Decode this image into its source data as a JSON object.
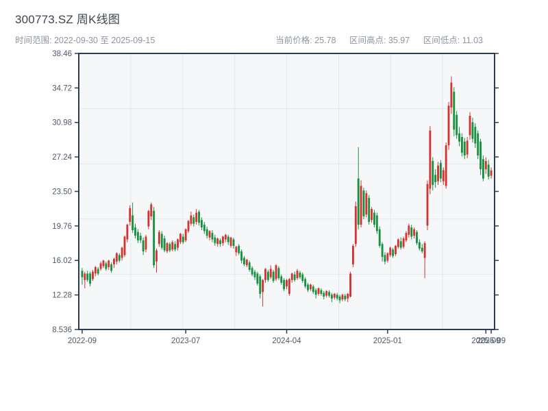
{
  "header": {
    "title": "300773.SZ 周K线图",
    "subtitle": "时间范围: 2022-09-30 至 2025-09-15",
    "stats": [
      {
        "label": "当前价格: ",
        "value": "25.78"
      },
      {
        "label": "区间高点: ",
        "value": "35.97"
      },
      {
        "label": "区间低点: ",
        "value": "11.03"
      }
    ]
  },
  "chart_data": {
    "type": "candlestick",
    "title": "300773.SZ 周K线图",
    "frequency": "weekly",
    "date_range": [
      "2022-09-30",
      "2025-09-15"
    ],
    "current_price": 25.78,
    "period_high": 35.97,
    "period_low": 11.03,
    "ylim": [
      8.536,
      38.46
    ],
    "y_ticks": [
      {
        "v": 38.46,
        "label": "38.46"
      },
      {
        "v": 34.72,
        "label": "34.72"
      },
      {
        "v": 30.98,
        "label": "30.98"
      },
      {
        "v": 27.24,
        "label": "27.24"
      },
      {
        "v": 23.5,
        "label": "23.50"
      },
      {
        "v": 19.76,
        "label": "19.76"
      },
      {
        "v": 16.02,
        "label": "16.02"
      },
      {
        "v": 12.28,
        "label": "12.28"
      },
      {
        "v": 8.536,
        "label": "8.536"
      }
    ],
    "x_ticks": [
      {
        "i": 0,
        "label": "2022-09"
      },
      {
        "i": 39,
        "label": "2023-07"
      },
      {
        "i": 77,
        "label": "2024-04"
      },
      {
        "i": 115,
        "label": "2025-01"
      },
      {
        "i": 152,
        "label": "2025-09"
      },
      {
        "i": 154,
        "label": "2025-09"
      }
    ],
    "grid": {
      "v_divisions": 8,
      "h_divisions": 5
    },
    "colors": {
      "up": "#d13431",
      "down": "#17913f",
      "axis": "#2c3a50",
      "grid": "#e4e7eb",
      "plot_bg": "#f6f7f9",
      "tick_text": "#4e5a67",
      "title_text": "#3c4350",
      "muted_text": "#8d959f"
    },
    "ohlc_format": [
      "open",
      "high",
      "low",
      "close"
    ],
    "candles": [
      [
        14.9,
        15.2,
        13.4,
        14.2
      ],
      [
        13.9,
        14.8,
        13.0,
        14.6
      ],
      [
        14.6,
        14.9,
        13.7,
        13.9
      ],
      [
        14.6,
        14.8,
        13.2,
        13.5
      ],
      [
        14.0,
        15.0,
        13.8,
        14.8
      ],
      [
        14.6,
        15.4,
        14.3,
        15.3
      ],
      [
        15.1,
        15.3,
        14.4,
        14.6
      ],
      [
        15.1,
        15.9,
        14.9,
        15.7
      ],
      [
        15.4,
        16.1,
        15.2,
        16.0
      ],
      [
        15.7,
        15.9,
        14.9,
        15.1
      ],
      [
        15.3,
        16.1,
        15.0,
        16.0
      ],
      [
        15.6,
        15.8,
        14.7,
        14.9
      ],
      [
        15.6,
        16.3,
        15.2,
        16.2
      ],
      [
        15.9,
        16.9,
        15.6,
        16.8
      ],
      [
        16.6,
        16.8,
        15.8,
        16.0
      ],
      [
        16.3,
        17.5,
        16.0,
        17.4
      ],
      [
        16.6,
        18.7,
        16.4,
        18.6
      ],
      [
        18.3,
        20.0,
        18.0,
        19.9
      ],
      [
        20.2,
        22.0,
        19.8,
        21.7
      ],
      [
        20.9,
        22.3,
        19.0,
        19.3
      ],
      [
        19.6,
        20.0,
        18.4,
        18.7
      ],
      [
        19.1,
        19.4,
        17.9,
        18.2
      ],
      [
        18.7,
        19.0,
        17.9,
        18.2
      ],
      [
        18.2,
        18.5,
        16.6,
        17.0
      ],
      [
        17.2,
        18.8,
        16.9,
        18.6
      ],
      [
        19.7,
        21.5,
        19.4,
        21.4
      ],
      [
        20.8,
        22.3,
        20.4,
        22.1
      ],
      [
        21.4,
        21.8,
        15.2,
        15.5
      ],
      [
        15.9,
        17.3,
        14.7,
        17.1
      ],
      [
        17.8,
        19.3,
        17.5,
        19.1
      ],
      [
        18.9,
        19.2,
        17.2,
        17.4
      ],
      [
        18.4,
        18.7,
        16.9,
        17.1
      ],
      [
        17.0,
        18.0,
        16.8,
        17.9
      ],
      [
        17.8,
        18.0,
        16.9,
        17.1
      ],
      [
        17.2,
        18.2,
        17.0,
        18.0
      ],
      [
        17.8,
        18.1,
        17.0,
        17.2
      ],
      [
        17.4,
        18.4,
        17.1,
        18.3
      ],
      [
        18.0,
        19.0,
        17.8,
        18.9
      ],
      [
        18.6,
        18.9,
        17.8,
        18.0
      ],
      [
        18.2,
        19.5,
        18.0,
        19.4
      ],
      [
        19.2,
        20.4,
        19.0,
        20.3
      ],
      [
        20.0,
        21.3,
        19.8,
        20.9
      ],
      [
        20.7,
        21.0,
        19.7,
        20.0
      ],
      [
        20.2,
        21.6,
        19.9,
        21.2
      ],
      [
        21.3,
        21.5,
        19.8,
        20.1
      ],
      [
        20.4,
        20.7,
        19.3,
        19.6
      ],
      [
        19.9,
        20.2,
        18.9,
        19.2
      ],
      [
        19.4,
        19.7,
        18.4,
        18.7
      ],
      [
        18.5,
        19.3,
        18.2,
        19.2
      ],
      [
        19.0,
        19.3,
        18.0,
        18.3
      ],
      [
        18.5,
        18.8,
        17.6,
        17.9
      ],
      [
        17.8,
        18.5,
        17.5,
        18.4
      ],
      [
        18.2,
        18.4,
        17.5,
        17.8
      ],
      [
        17.9,
        18.7,
        17.6,
        18.6
      ],
      [
        18.3,
        18.9,
        18.0,
        18.8
      ],
      [
        18.6,
        18.8,
        17.7,
        18.0
      ],
      [
        17.6,
        18.6,
        17.4,
        18.5
      ],
      [
        18.3,
        18.5,
        17.3,
        17.6
      ],
      [
        16.9,
        17.6,
        16.5,
        17.5
      ],
      [
        17.6,
        17.8,
        16.6,
        16.8
      ],
      [
        17.0,
        17.2,
        15.7,
        16.0
      ],
      [
        16.3,
        16.5,
        15.4,
        15.6
      ],
      [
        15.5,
        16.2,
        15.3,
        16.1
      ],
      [
        15.8,
        16.0,
        14.8,
        15.0
      ],
      [
        15.2,
        15.4,
        14.3,
        14.5
      ],
      [
        14.8,
        15.0,
        13.9,
        14.2
      ],
      [
        14.6,
        14.8,
        13.3,
        13.5
      ],
      [
        14.3,
        14.5,
        11.9,
        12.4
      ],
      [
        12.6,
        14.0,
        11.03,
        13.9
      ],
      [
        13.9,
        15.2,
        13.6,
        15.1
      ],
      [
        14.8,
        15.0,
        13.7,
        13.9
      ],
      [
        14.2,
        15.5,
        14.0,
        15.1
      ],
      [
        14.8,
        15.0,
        13.6,
        13.8
      ],
      [
        14.0,
        15.6,
        13.8,
        15.5
      ],
      [
        15.2,
        15.4,
        13.9,
        14.1
      ],
      [
        14.3,
        14.5,
        13.4,
        13.6
      ],
      [
        13.9,
        14.1,
        12.7,
        12.9
      ],
      [
        13.2,
        14.0,
        12.9,
        13.9
      ],
      [
        12.4,
        14.1,
        12.2,
        14.0
      ],
      [
        13.9,
        14.7,
        13.6,
        14.6
      ],
      [
        14.5,
        14.8,
        13.7,
        13.9
      ],
      [
        14.1,
        15.1,
        13.9,
        14.9
      ],
      [
        14.7,
        14.9,
        14.0,
        14.2
      ],
      [
        14.5,
        14.7,
        13.6,
        13.8
      ],
      [
        14.0,
        14.2,
        13.0,
        13.2
      ],
      [
        13.4,
        13.6,
        12.6,
        12.8
      ],
      [
        12.9,
        13.5,
        12.7,
        13.4
      ],
      [
        13.2,
        13.4,
        12.4,
        12.6
      ],
      [
        12.8,
        13.0,
        11.9,
        12.3
      ],
      [
        12.4,
        13.1,
        12.2,
        13.0
      ],
      [
        12.8,
        13.0,
        12.2,
        12.4
      ],
      [
        12.5,
        12.7,
        11.8,
        12.1
      ],
      [
        12.2,
        12.8,
        12.0,
        12.7
      ],
      [
        12.6,
        12.8,
        12.0,
        12.2
      ],
      [
        12.3,
        12.5,
        11.5,
        11.9
      ],
      [
        12.0,
        12.5,
        11.8,
        12.4
      ],
      [
        12.3,
        12.5,
        11.7,
        11.9
      ],
      [
        12.1,
        12.3,
        11.4,
        11.7
      ],
      [
        11.8,
        12.4,
        11.6,
        12.3
      ],
      [
        12.2,
        12.4,
        11.6,
        11.8
      ],
      [
        11.9,
        12.5,
        11.5,
        12.4
      ],
      [
        12.1,
        14.8,
        12.0,
        14.6
      ],
      [
        15.6,
        17.8,
        15.3,
        17.6
      ],
      [
        17.8,
        22.4,
        17.5,
        21.9
      ],
      [
        24.9,
        28.3,
        19.4,
        19.9
      ],
      [
        19.9,
        24.7,
        19.6,
        24.1
      ],
      [
        23.6,
        23.9,
        20.5,
        20.8
      ],
      [
        21.0,
        23.6,
        20.7,
        23.3
      ],
      [
        22.8,
        23.1,
        19.9,
        20.2
      ],
      [
        20.4,
        21.8,
        20.1,
        21.6
      ],
      [
        21.2,
        21.5,
        19.6,
        19.9
      ],
      [
        20.9,
        21.2,
        18.9,
        19.2
      ],
      [
        19.4,
        19.7,
        17.4,
        17.6
      ],
      [
        17.8,
        18.0,
        15.9,
        16.4
      ],
      [
        16.6,
        16.9,
        15.6,
        15.9
      ],
      [
        16.0,
        16.9,
        15.8,
        16.8
      ],
      [
        16.6,
        17.5,
        16.4,
        17.4
      ],
      [
        17.2,
        17.4,
        16.3,
        16.5
      ],
      [
        16.7,
        17.7,
        16.5,
        17.6
      ],
      [
        17.5,
        18.4,
        17.3,
        18.3
      ],
      [
        18.1,
        18.5,
        17.2,
        17.4
      ],
      [
        17.5,
        18.6,
        17.3,
        18.4
      ],
      [
        18.2,
        19.2,
        18.0,
        19.0
      ],
      [
        18.8,
        20.0,
        18.5,
        19.8
      ],
      [
        19.6,
        19.9,
        18.3,
        18.6
      ],
      [
        18.7,
        19.6,
        18.4,
        19.4
      ],
      [
        19.1,
        19.3,
        17.7,
        17.9
      ],
      [
        18.0,
        18.3,
        17.1,
        17.3
      ],
      [
        17.4,
        17.8,
        16.8,
        17.0
      ],
      [
        16.3,
        18.1,
        14.1,
        17.9
      ],
      [
        19.8,
        24.7,
        19.3,
        24.3
      ],
      [
        23.8,
        30.6,
        23.2,
        30.1
      ],
      [
        26.8,
        27.2,
        23.6,
        24.2
      ],
      [
        25.3,
        25.9,
        23.9,
        24.5
      ],
      [
        24.6,
        26.7,
        24.2,
        26.3
      ],
      [
        26.6,
        26.9,
        24.5,
        24.9
      ],
      [
        24.6,
        26.1,
        24.2,
        25.8
      ],
      [
        24.1,
        28.8,
        23.8,
        28.5
      ],
      [
        28.5,
        33.2,
        28.0,
        32.8
      ],
      [
        32.6,
        35.97,
        31.9,
        35.3
      ],
      [
        34.3,
        34.8,
        29.5,
        30.2
      ],
      [
        31.8,
        32.2,
        29.2,
        29.6
      ],
      [
        29.8,
        30.5,
        28.4,
        28.9
      ],
      [
        29.4,
        29.8,
        27.3,
        27.7
      ],
      [
        28.9,
        29.3,
        27.0,
        27.4
      ],
      [
        27.5,
        29.4,
        27.1,
        29.0
      ],
      [
        29.6,
        32.1,
        29.1,
        31.7
      ],
      [
        31.0,
        31.5,
        28.8,
        29.2
      ],
      [
        30.5,
        30.9,
        28.2,
        28.7
      ],
      [
        29.8,
        30.1,
        27.0,
        27.4
      ],
      [
        28.9,
        29.2,
        25.3,
        25.9
      ],
      [
        27.0,
        27.4,
        24.6,
        24.9
      ],
      [
        25.9,
        27.2,
        25.4,
        26.8
      ],
      [
        26.4,
        26.9,
        24.8,
        25.1
      ],
      [
        25.2,
        26.1,
        24.9,
        25.78
      ]
    ]
  }
}
